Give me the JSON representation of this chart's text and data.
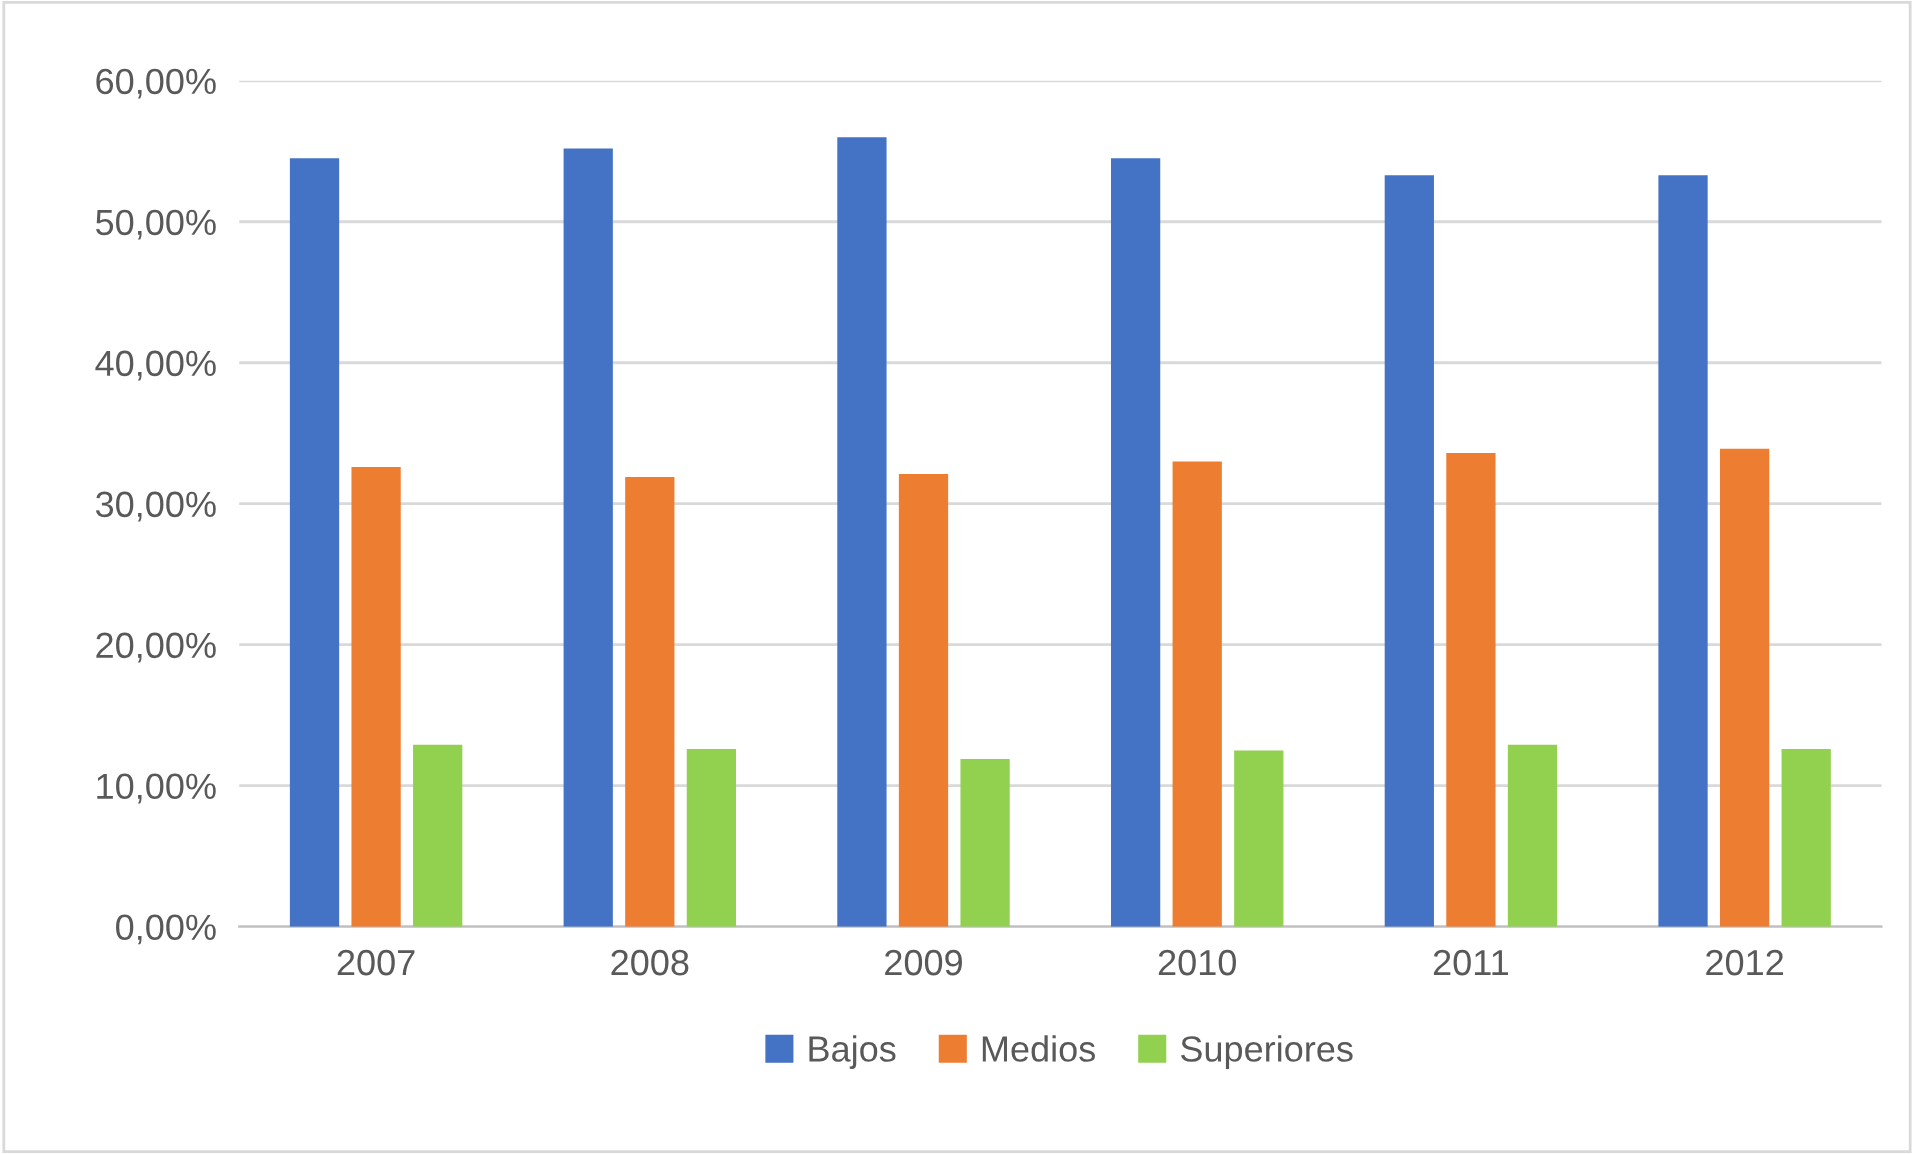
{
  "chart_data": {
    "type": "bar",
    "categories": [
      "2007",
      "2008",
      "2009",
      "2010",
      "2011",
      "2012"
    ],
    "series": [
      {
        "name": "Bajos",
        "color": "#4472c4",
        "values": [
          54.5,
          55.2,
          56.0,
          54.5,
          53.3,
          53.3
        ]
      },
      {
        "name": "Medios",
        "color": "#ed7d31",
        "values": [
          32.6,
          31.9,
          32.1,
          33.0,
          33.6,
          33.9
        ]
      },
      {
        "name": "Superiores",
        "color": "#92d050",
        "values": [
          12.9,
          12.6,
          11.9,
          12.5,
          12.9,
          12.6
        ]
      }
    ],
    "ylim": [
      0,
      60
    ],
    "yticks": [
      {
        "value": 0,
        "label": "0,00%"
      },
      {
        "value": 10,
        "label": "10,00%"
      },
      {
        "value": 20,
        "label": "20,00%"
      },
      {
        "value": 30,
        "label": "30,00%"
      },
      {
        "value": 40,
        "label": "40,00%"
      },
      {
        "value": 50,
        "label": "50,00%"
      },
      {
        "value": 60,
        "label": "60,00%"
      }
    ],
    "grid": "y",
    "legend": "bottom"
  }
}
